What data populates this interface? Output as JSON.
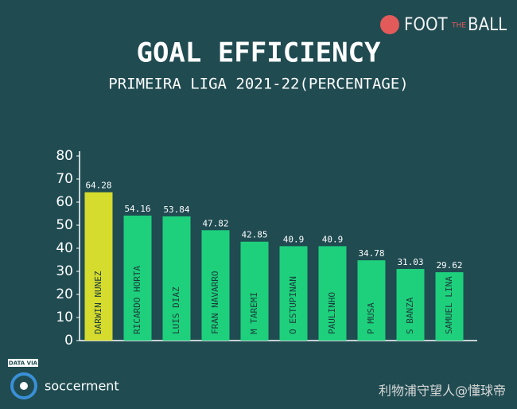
{
  "logo": {
    "part1": "FOOT",
    "part2": "THE",
    "part3": "BALL"
  },
  "source": {
    "prefix": "DATA VIA",
    "name": "soccerment"
  },
  "watermark": "利物浦守望人@懂球帝",
  "chart_data": {
    "type": "bar",
    "title": "GOAL EFFICIENCY",
    "subtitle": "PRIMEIRA LIGA 2021-22(PERCENTAGE)",
    "categories": [
      "DARWIN NUNEZ",
      "RICARDO HORTA",
      "LUIS DIAZ",
      "FRAN NAVARRO",
      "M TAREMI",
      "O ESTUPINAN",
      "PAULINHO",
      "P MUSA",
      "S BANZA",
      "SAMUEL LINA"
    ],
    "values": [
      64.28,
      54.16,
      53.84,
      47.82,
      42.85,
      40.9,
      40.9,
      34.78,
      31.03,
      29.62
    ],
    "colors": [
      "#d6dc2e",
      "#1ed07c",
      "#1ed07c",
      "#1ed07c",
      "#1ed07c",
      "#1ed07c",
      "#1ed07c",
      "#1ed07c",
      "#1ed07c",
      "#1ed07c"
    ],
    "ylim": [
      0,
      80
    ],
    "yticks": [
      0,
      10,
      20,
      30,
      40,
      50,
      60,
      70,
      80
    ],
    "grid": false
  }
}
